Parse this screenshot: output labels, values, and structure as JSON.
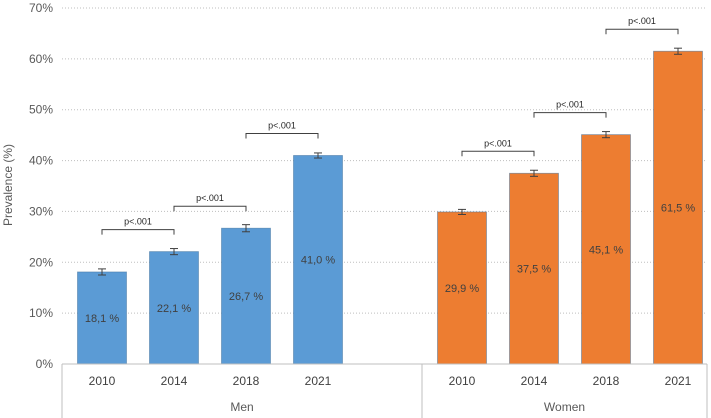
{
  "chart_data": {
    "type": "bar",
    "ylabel": "Prevalence (%)",
    "ylim": [
      0,
      70
    ],
    "yticks": [
      0,
      10,
      20,
      30,
      40,
      50,
      60,
      70
    ],
    "ytick_labels": [
      "0%",
      "10%",
      "20%",
      "30%",
      "40%",
      "50%",
      "60%",
      "70%"
    ],
    "grid": "horizontal dotted",
    "groups": [
      {
        "name": "Men",
        "color": "#5B9BD5",
        "categories": [
          "2010",
          "2014",
          "2018",
          "2021"
        ],
        "values": [
          18.1,
          22.1,
          26.7,
          41.0
        ],
        "labels": [
          "18,1 %",
          "22,1 %",
          "26,7 %",
          "41,0 %"
        ],
        "errors": [
          0.6,
          0.6,
          0.7,
          0.5
        ],
        "comparisons": [
          {
            "from": 0,
            "to": 1,
            "text": "p<.001"
          },
          {
            "from": 1,
            "to": 2,
            "text": "p<.001"
          },
          {
            "from": 2,
            "to": 3,
            "text": "p<.001"
          }
        ]
      },
      {
        "name": "Women",
        "color": "#ED7D31",
        "categories": [
          "2010",
          "2014",
          "2018",
          "2021"
        ],
        "values": [
          29.9,
          37.5,
          45.1,
          61.5
        ],
        "labels": [
          "29,9 %",
          "37,5 %",
          "45,1 %",
          "61,5 %"
        ],
        "errors": [
          0.5,
          0.6,
          0.6,
          0.6
        ],
        "comparisons": [
          {
            "from": 0,
            "to": 1,
            "text": "p<.001"
          },
          {
            "from": 1,
            "to": 2,
            "text": "p<.001"
          },
          {
            "from": 2,
            "to": 3,
            "text": "p<.001"
          }
        ]
      }
    ]
  }
}
